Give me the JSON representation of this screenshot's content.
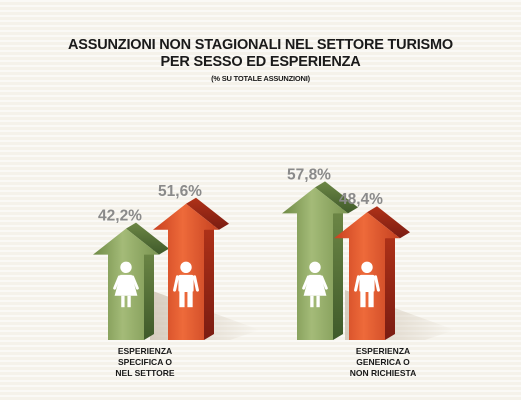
{
  "title_line1": "ASSUNZIONI NON STAGIONALI  NEL SETTORE TURISMO",
  "title_line2": "PER SESSO ED ESPERIENZA",
  "subtitle": "(% SU TOTALE ASSUNZIONI)",
  "colors": {
    "female": "#8aa35f",
    "male": "#d8502a",
    "value_label": "#8a8a8a"
  },
  "chart_data": {
    "type": "bar",
    "title": "ASSUNZIONI NON STAGIONALI  NEL SETTORE TURISMO PER SESSO ED ESPERIENZA",
    "subtitle": "(% SU TOTALE ASSUNZIONI)",
    "categories": [
      [
        "ESPERIENZA",
        "SPECIFICA O",
        "NEL SETTORE"
      ],
      [
        "ESPERIENZA",
        "GENERICA O",
        "NON RICHIESTA"
      ]
    ],
    "series": [
      {
        "values": [
          42.2,
          57.8
        ],
        "icon": "female-icon"
      },
      {
        "values": [
          51.6,
          48.4
        ],
        "icon": "male-icon"
      }
    ],
    "value_labels": [
      [
        "42,2%",
        "57,8%"
      ],
      [
        "51,6%",
        "48,4%"
      ]
    ]
  }
}
